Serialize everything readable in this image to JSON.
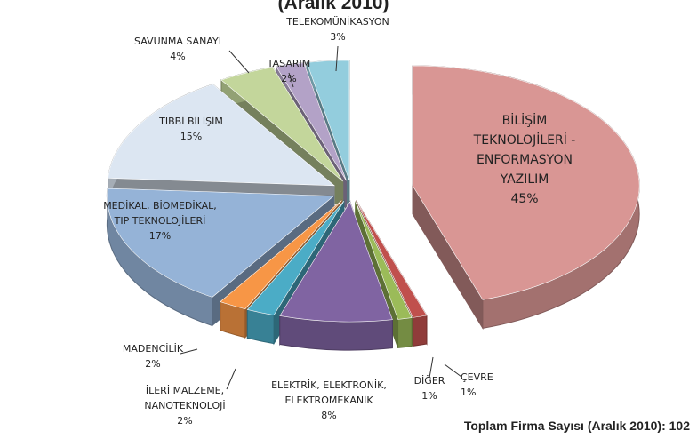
{
  "chart_data": {
    "type": "pie",
    "title": "(Aralık 2010)",
    "categories": [
      [
        "BİLİŞİM",
        "TEKNOLOJİLERİ -",
        "ENFORMASYON",
        "YAZILIM"
      ],
      [
        "ÇEVRE"
      ],
      [
        "DİĞER"
      ],
      [
        "ELEKTRİK, ELEKTRONİK,",
        "ELEKTROMEKANİK"
      ],
      [
        "İLERİ MALZEME,",
        "NANOTEKNOLOJİ"
      ],
      [
        "MADENCİLİK"
      ],
      [
        "MEDİKAL, BİOMEDİKAL,",
        "TIP TEKNOLOJİLERİ"
      ],
      [
        "TIBBİ BİLİŞİM"
      ],
      [
        "SAVUNMA SANAYİ"
      ],
      [
        "TASARIM"
      ],
      [
        "TELEKOMÜNİKASYON"
      ]
    ],
    "values": [
      45,
      1,
      1,
      8,
      2,
      2,
      17,
      15,
      4,
      2,
      3
    ],
    "value_labels": [
      "45%",
      "1%",
      "1%",
      "8%",
      "2%",
      "2%",
      "17%",
      "15%",
      "4%",
      "2%",
      "3%"
    ],
    "colors": [
      "#d99694",
      "#c0504d",
      "#9bbb59",
      "#8064a2",
      "#4bacc6",
      "#f79646",
      "#95b3d7",
      "#dce6f2",
      "#c3d69b",
      "#b3a2c7",
      "#93cddd"
    ],
    "annotation": "Toplam Firma Sayısı (Aralık 2010):  102"
  }
}
